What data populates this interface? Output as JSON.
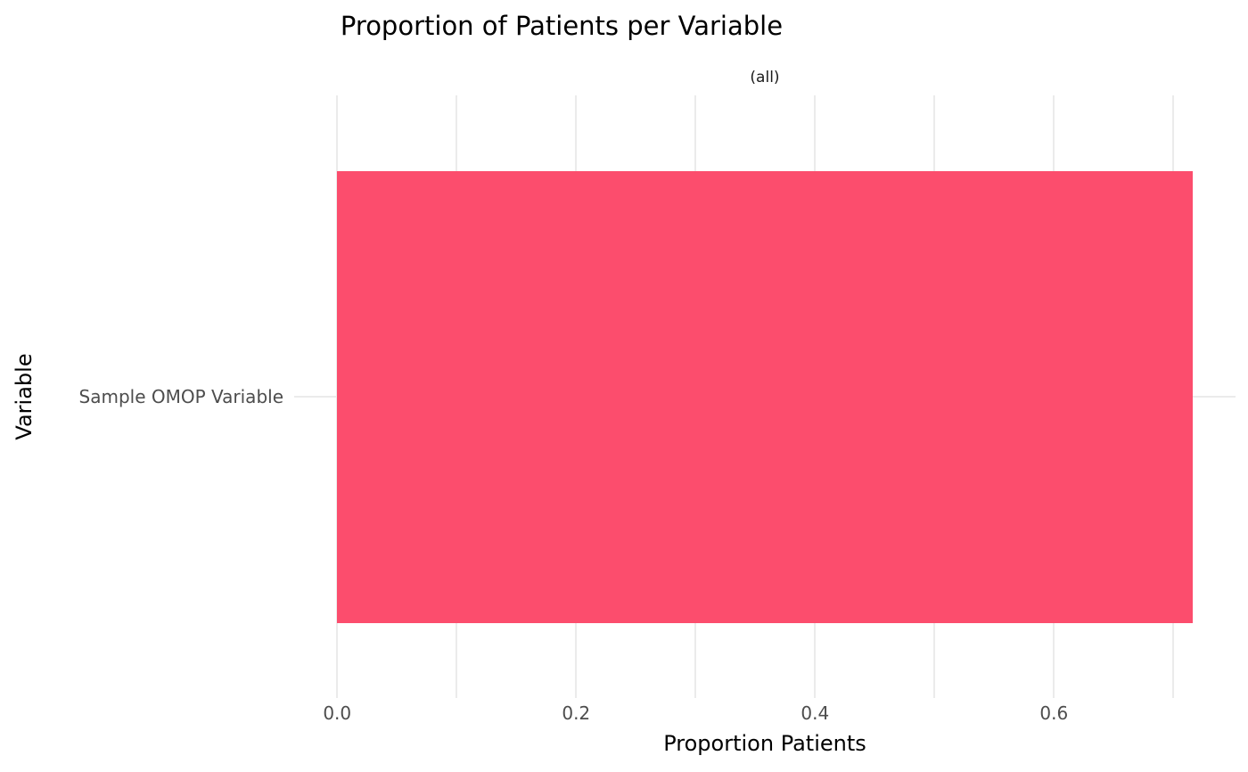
{
  "chart_data": {
    "type": "bar",
    "orientation": "horizontal",
    "title": "Proportion of Patients per Variable",
    "facet_label": "(all)",
    "xlabel": "Proportion Patients",
    "ylabel": "Variable",
    "categories": [
      "Sample OMOP Variable"
    ],
    "values": [
      0.716
    ],
    "x_ticks": [
      0.0,
      0.2,
      0.4,
      0.6
    ],
    "x_tick_labels": [
      "0.0",
      "0.2",
      "0.4",
      "0.6"
    ],
    "x_minor_gridlines": [
      0.1,
      0.3,
      0.5,
      0.7
    ],
    "xlim": [
      -0.036,
      0.752
    ],
    "grid": true,
    "legend_position": "none",
    "colors": {
      "bar": "#FC4D6D",
      "gridline": "#EBEBEB",
      "tick_label": "#4D4D4D",
      "text": "#1A1A1A",
      "background": "#FFFFFF"
    }
  }
}
